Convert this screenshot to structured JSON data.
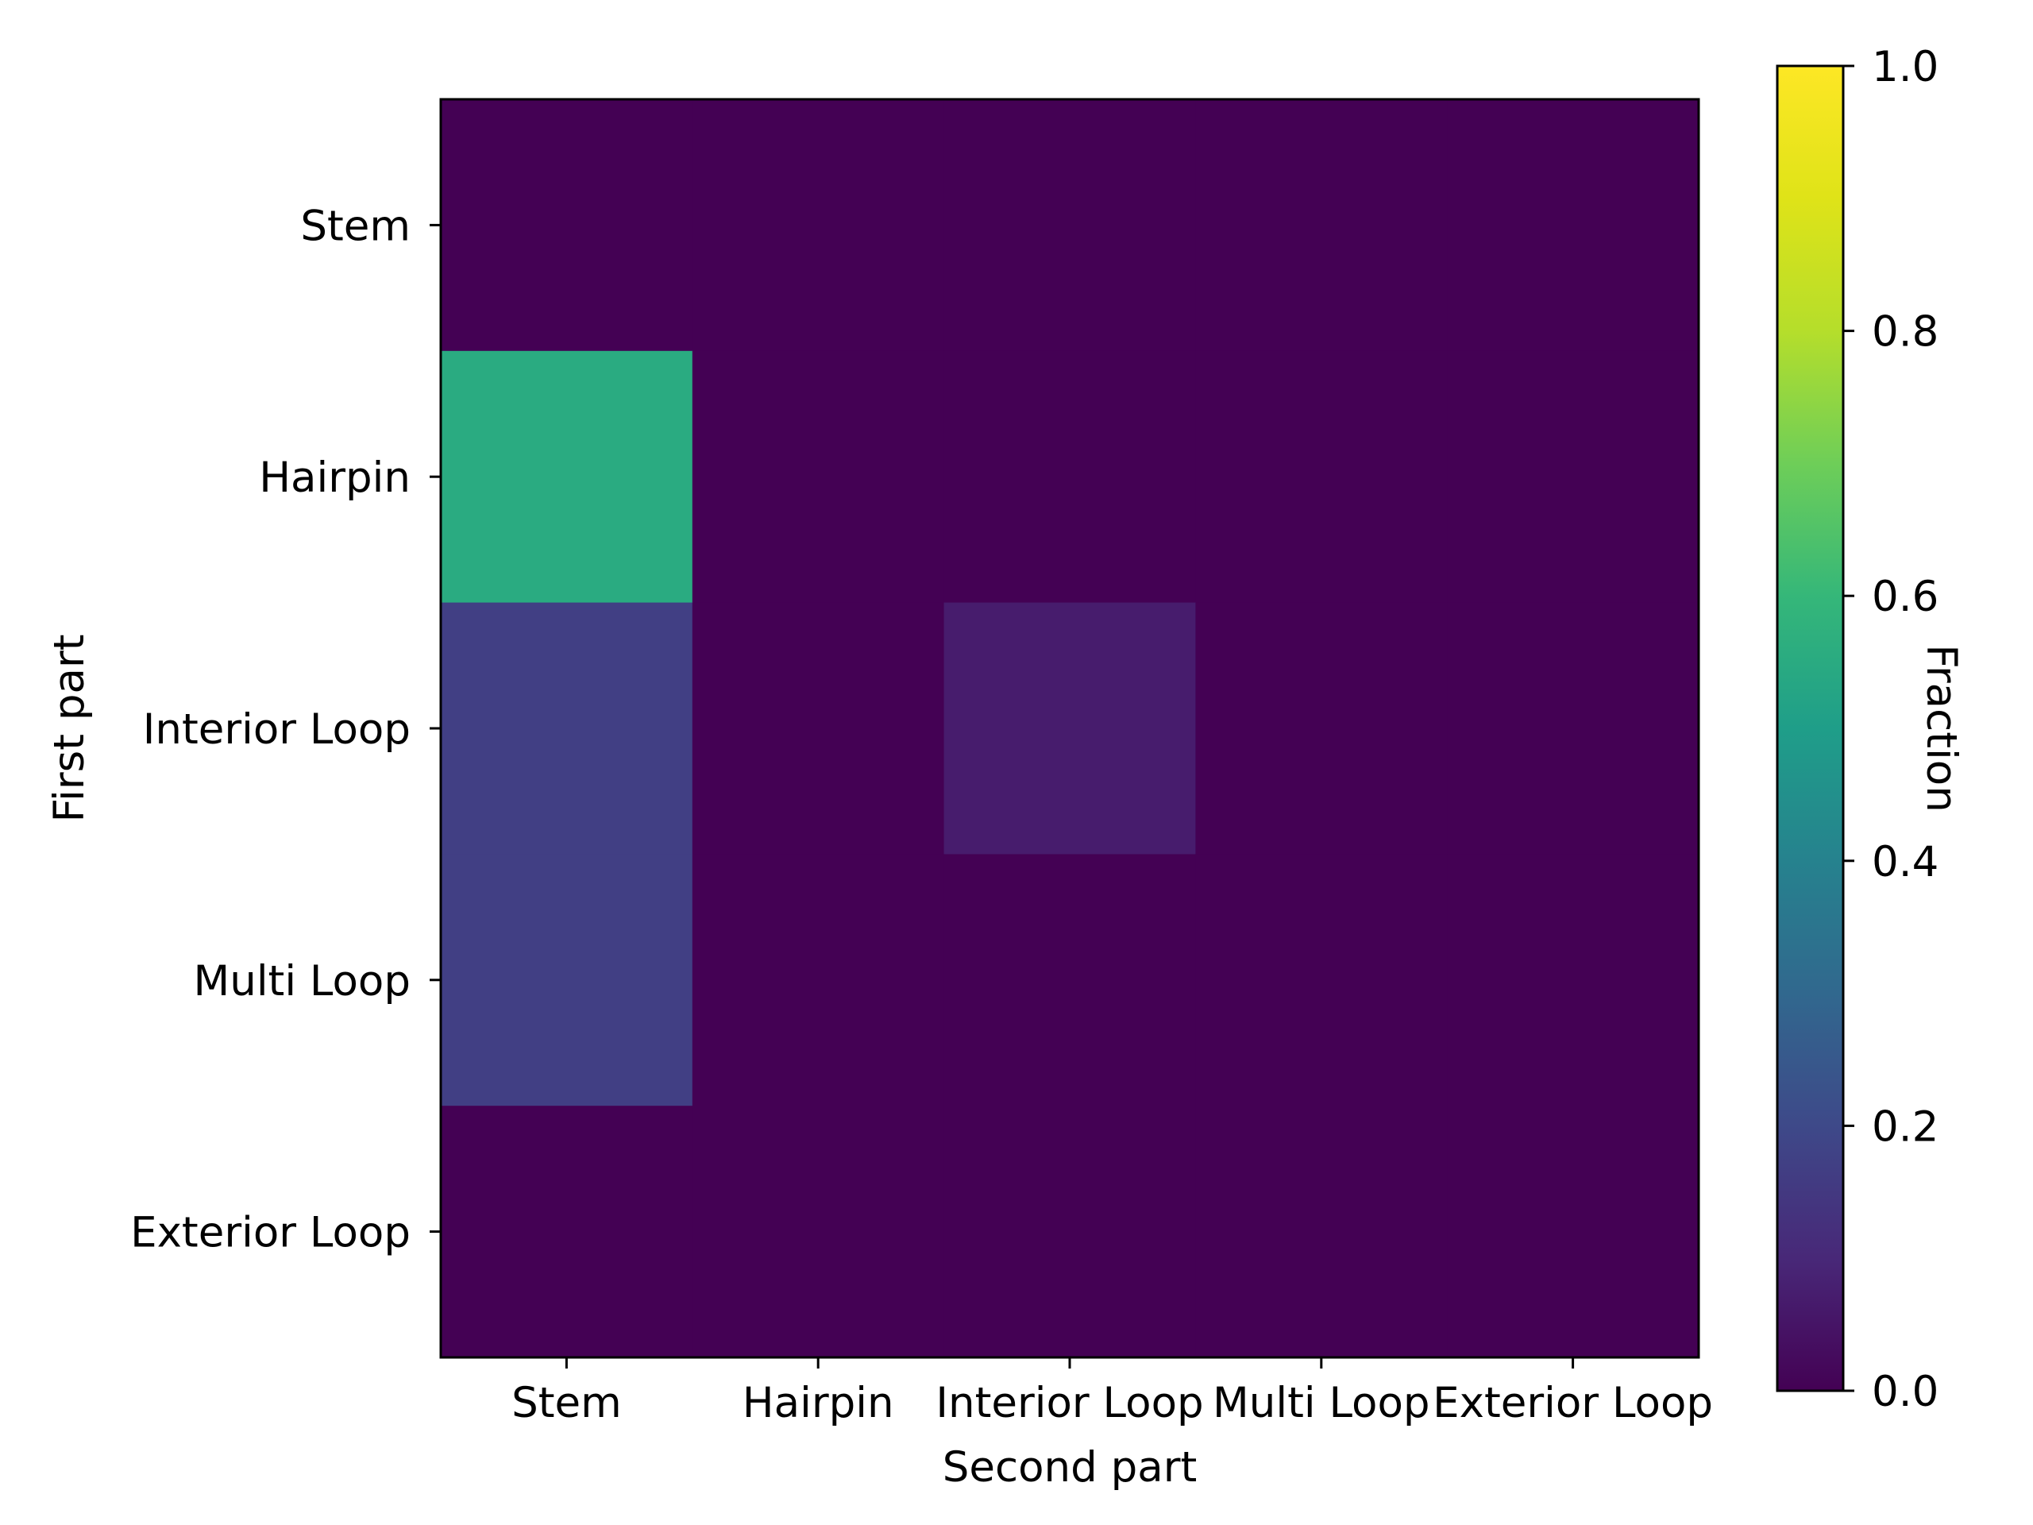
{
  "chart_data": {
    "type": "heatmap",
    "title": "",
    "xlabel": "Second part",
    "ylabel": "First part",
    "x_categories": [
      "Stem",
      "Hairpin",
      "Interior Loop",
      "Multi Loop",
      "Exterior Loop"
    ],
    "y_categories": [
      "Stem",
      "Hairpin",
      "Interior Loop",
      "Multi Loop",
      "Exterior Loop"
    ],
    "values": [
      [
        0.0,
        0.0,
        0.0,
        0.0,
        0.0
      ],
      [
        0.55,
        0.0,
        0.0,
        0.0,
        0.0
      ],
      [
        0.17,
        0.0,
        0.07,
        0.0,
        0.0
      ],
      [
        0.17,
        0.0,
        0.0,
        0.0,
        0.0
      ],
      [
        0.0,
        0.0,
        0.0,
        0.0,
        0.0
      ]
    ],
    "colorbar": {
      "label": "Fraction",
      "range": [
        0.0,
        1.0
      ],
      "ticks": [
        0.0,
        0.2,
        0.4,
        0.6,
        0.8,
        1.0
      ],
      "tick_labels": [
        "0.0",
        "0.2",
        "0.4",
        "0.6",
        "0.8",
        "1.0"
      ],
      "colormap": "viridis"
    },
    "grid": false
  }
}
